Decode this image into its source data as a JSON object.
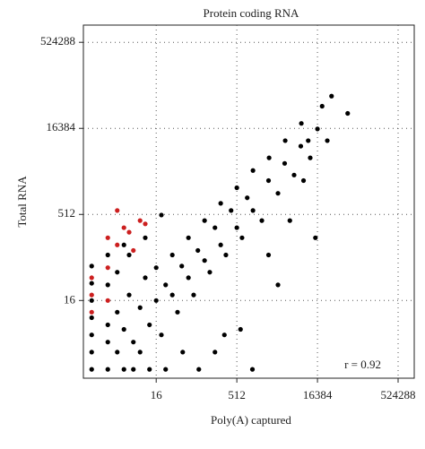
{
  "chart_data": {
    "type": "scatter",
    "title": "Protein coding RNA",
    "xlabel": "Poly(A) captured",
    "ylabel": "Total RNA",
    "annotation": "r = 0.92",
    "log": true,
    "grid": true,
    "xlim": [
      0.7,
      1048576
    ],
    "ylim": [
      0.7,
      1048576
    ],
    "xticks": [
      16,
      512,
      16384,
      524288
    ],
    "yticks": [
      16,
      512,
      16384,
      524288
    ],
    "series": [
      {
        "color": "#000000",
        "x": [
          1,
          1,
          1,
          1,
          1,
          2,
          2,
          2,
          3,
          3,
          4,
          4,
          5,
          6,
          8,
          8,
          10,
          12,
          16,
          16,
          20,
          24,
          32,
          32,
          40,
          48,
          64,
          64,
          80,
          96,
          128,
          128,
          160,
          200,
          256,
          256,
          320,
          400,
          512,
          512,
          640,
          800,
          1024,
          1024,
          1500,
          2000,
          2048,
          3000,
          4000,
          4096,
          6000,
          8000,
          8192,
          12000,
          16384,
          20000,
          25000,
          30000,
          60000,
          1000,
          5000,
          100,
          3000,
          15000,
          9000,
          2000,
          600,
          50,
          300,
          5,
          3,
          2,
          10,
          20,
          1,
          1,
          2,
          4,
          6,
          12,
          24,
          200,
          11000
        ],
        "y": [
          1,
          2,
          4,
          8,
          16,
          1,
          3,
          6,
          2,
          10,
          1,
          5,
          20,
          3,
          2,
          12,
          40,
          6,
          16,
          60,
          4,
          30,
          20,
          100,
          10,
          64,
          40,
          200,
          20,
          120,
          80,
          400,
          50,
          300,
          150,
          800,
          100,
          600,
          300,
          1500,
          200,
          1000,
          600,
          3000,
          400,
          2000,
          5000,
          1200,
          4000,
          10000,
          2500,
          8000,
          20000,
          5000,
          16000,
          40000,
          10000,
          60000,
          30000,
          1,
          400,
          1,
          30,
          200,
          2000,
          100,
          5,
          2,
          4,
          100,
          50,
          30,
          200,
          500,
          32,
          64,
          100,
          150,
          1,
          1,
          1,
          2,
          10000
        ]
      },
      {
        "color": "#cc1f1f",
        "x": [
          1,
          1,
          2,
          2,
          3,
          4,
          5,
          6,
          8,
          10,
          3,
          2,
          1
        ],
        "y": [
          20,
          40,
          60,
          200,
          150,
          300,
          250,
          120,
          400,
          350,
          600,
          16,
          10
        ]
      }
    ]
  }
}
